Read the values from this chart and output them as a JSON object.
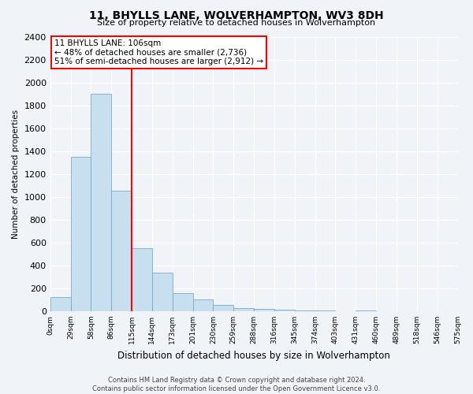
{
  "title": "11, BHYLLS LANE, WOLVERHAMPTON, WV3 8DH",
  "subtitle": "Size of property relative to detached houses in Wolverhampton",
  "xlabel": "Distribution of detached houses by size in Wolverhampton",
  "ylabel": "Number of detached properties",
  "bin_labels": [
    "0sqm",
    "29sqm",
    "58sqm",
    "86sqm",
    "115sqm",
    "144sqm",
    "173sqm",
    "201sqm",
    "230sqm",
    "259sqm",
    "288sqm",
    "316sqm",
    "345sqm",
    "374sqm",
    "403sqm",
    "431sqm",
    "460sqm",
    "489sqm",
    "518sqm",
    "546sqm",
    "575sqm"
  ],
  "bar_values": [
    125,
    1350,
    1900,
    1050,
    550,
    335,
    160,
    105,
    55,
    30,
    18,
    10,
    5,
    3,
    0,
    8,
    0,
    0,
    0,
    0,
    8
  ],
  "bar_color": "#c8dff0",
  "bar_edge_color": "#7aaac8",
  "vline_x_idx": 4,
  "vline_color": "red",
  "annotation_title": "11 BHYLLS LANE: 106sqm",
  "annotation_line1": "← 48% of detached houses are smaller (2,736)",
  "annotation_line2": "51% of semi-detached houses are larger (2,912) →",
  "annotation_box_color": "white",
  "annotation_box_edge": "red",
  "ylim": [
    0,
    2400
  ],
  "yticks": [
    0,
    200,
    400,
    600,
    800,
    1000,
    1200,
    1400,
    1600,
    1800,
    2000,
    2200,
    2400
  ],
  "footer1": "Contains HM Land Registry data © Crown copyright and database right 2024.",
  "footer2": "Contains public sector information licensed under the Open Government Licence v3.0.",
  "bg_color": "#f0f4f8"
}
